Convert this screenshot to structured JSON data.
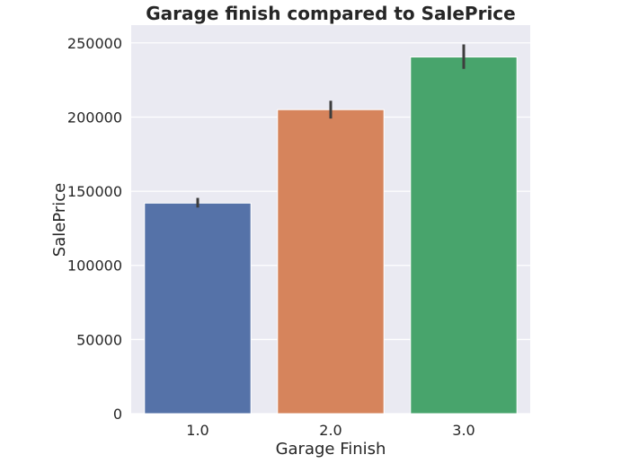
{
  "chart_data": {
    "type": "bar",
    "title": "Garage finish compared to SalePrice",
    "xlabel": "Garage Finish",
    "ylabel": "SalePrice",
    "categories": [
      "1.0",
      "2.0",
      "3.0"
    ],
    "values": [
      142000,
      205000,
      240500
    ],
    "error_bars": [
      [
        139000,
        145500
      ],
      [
        199000,
        211000
      ],
      [
        232500,
        249000
      ]
    ],
    "colors": [
      "#5572a8",
      "#d6845c",
      "#48a46c"
    ],
    "ylim": [
      0,
      262000
    ],
    "yticks": [
      0,
      50000,
      100000,
      150000,
      200000,
      250000
    ],
    "ytick_labels": [
      "0",
      "50000",
      "100000",
      "150000",
      "200000",
      "250000"
    ],
    "grid": true,
    "style": {
      "plot_background": "#eaeaf2",
      "grid_color": "#ffffff",
      "errorbar_color": "#3d3d3d"
    }
  }
}
